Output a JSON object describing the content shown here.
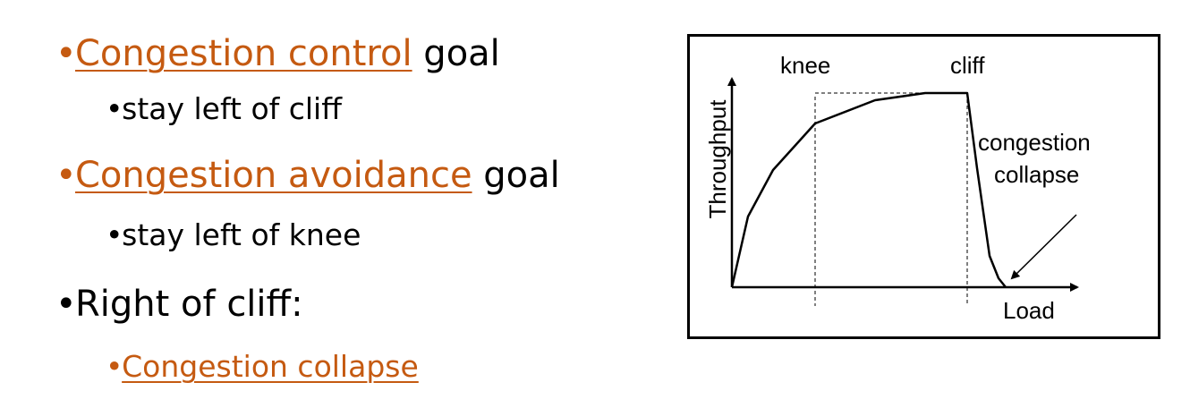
{
  "bullets": {
    "item1": {
      "link": "Congestion control",
      "rest": " goal"
    },
    "item1_sub": "stay left of cliff",
    "item2": {
      "link": "Congestion avoidance",
      "rest": " goal"
    },
    "item2_sub": "stay left of knee",
    "item3": "Right of cliff:",
    "item3_sub_link": "Congestion collapse",
    "bullet_glyph": "•"
  },
  "diagram": {
    "y_axis_label": "Throughput",
    "x_axis_label": "Load",
    "knee_label": "knee",
    "cliff_label": "cliff",
    "collapse_label_line1": "congestion",
    "collapse_label_line2": "collapse"
  },
  "colors": {
    "accent": "#C55A11",
    "text": "#000000"
  }
}
